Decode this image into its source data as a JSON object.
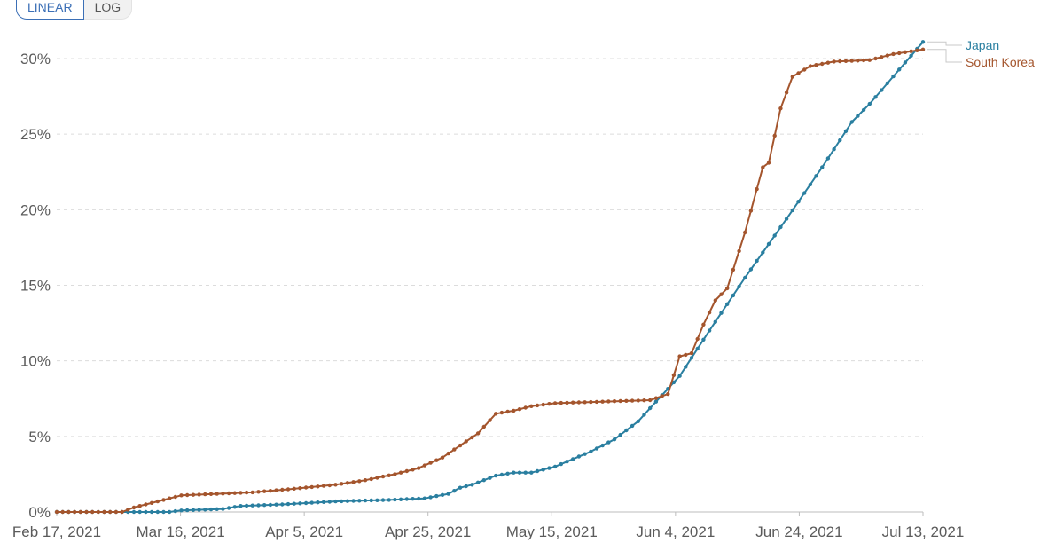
{
  "controls": {
    "linear_label": "LINEAR",
    "log_label": "LOG"
  },
  "chart_data": {
    "type": "line",
    "title": "",
    "xlabel": "",
    "ylabel": "",
    "x_ticks": [
      "Feb 17, 2021",
      "Mar 16, 2021",
      "Apr 5, 2021",
      "Apr 25, 2021",
      "May 15, 2021",
      "Jun 4, 2021",
      "Jun 24, 2021",
      "Jul 13, 2021"
    ],
    "xlim": [
      "2021-02-17",
      "2021-07-13"
    ],
    "y_ticks": [
      "0%",
      "5%",
      "10%",
      "15%",
      "20%",
      "25%",
      "30%"
    ],
    "ylim": [
      0,
      30
    ],
    "y_unit": "%",
    "grid": "horizontal dashed",
    "legend": "right end of lines",
    "series": [
      {
        "name": "Japan",
        "color": "#2a7fa0",
        "points": [
          [
            "2021-02-17",
            0
          ],
          [
            "2021-03-08",
            0
          ],
          [
            "2021-03-10",
            0.1
          ],
          [
            "2021-03-17",
            0.2
          ],
          [
            "2021-03-20",
            0.4
          ],
          [
            "2021-03-27",
            0.5
          ],
          [
            "2021-04-05",
            0.7
          ],
          [
            "2021-04-14",
            0.8
          ],
          [
            "2021-04-20",
            0.9
          ],
          [
            "2021-04-24",
            1.2
          ],
          [
            "2021-04-26",
            1.6
          ],
          [
            "2021-04-28",
            1.8
          ],
          [
            "2021-05-02",
            2.4
          ],
          [
            "2021-05-05",
            2.6
          ],
          [
            "2021-05-08",
            2.6
          ],
          [
            "2021-05-12",
            3.0
          ],
          [
            "2021-05-18",
            4.0
          ],
          [
            "2021-05-22",
            4.8
          ],
          [
            "2021-05-26",
            6.0
          ],
          [
            "2021-05-29",
            7.3
          ],
          [
            "2021-06-02",
            9.0
          ],
          [
            "2021-06-07",
            12.0
          ],
          [
            "2021-06-13",
            15.5
          ],
          [
            "2021-06-20",
            19.4
          ],
          [
            "2021-06-26",
            22.8
          ],
          [
            "2021-07-01",
            25.8
          ],
          [
            "2021-07-04",
            27.0
          ],
          [
            "2021-07-13",
            31.1
          ]
        ]
      },
      {
        "name": "South Korea",
        "color": "#a4552d",
        "points": [
          [
            "2021-02-17",
            0
          ],
          [
            "2021-02-28",
            0
          ],
          [
            "2021-03-02",
            0.3
          ],
          [
            "2021-03-06",
            0.7
          ],
          [
            "2021-03-10",
            1.1
          ],
          [
            "2021-03-16",
            1.2
          ],
          [
            "2021-03-22",
            1.3
          ],
          [
            "2021-03-28",
            1.5
          ],
          [
            "2021-04-05",
            1.8
          ],
          [
            "2021-04-10",
            2.1
          ],
          [
            "2021-04-15",
            2.5
          ],
          [
            "2021-04-19",
            2.9
          ],
          [
            "2021-04-23",
            3.6
          ],
          [
            "2021-04-26",
            4.4
          ],
          [
            "2021-04-29",
            5.2
          ],
          [
            "2021-05-02",
            6.5
          ],
          [
            "2021-05-05",
            6.7
          ],
          [
            "2021-05-08",
            7.0
          ],
          [
            "2021-05-12",
            7.2
          ],
          [
            "2021-05-20",
            7.3
          ],
          [
            "2021-05-28",
            7.4
          ],
          [
            "2021-05-31",
            7.8
          ],
          [
            "2021-06-02",
            10.3
          ],
          [
            "2021-06-04",
            10.5
          ],
          [
            "2021-06-06",
            12.4
          ],
          [
            "2021-06-08",
            14.0
          ],
          [
            "2021-06-10",
            14.8
          ],
          [
            "2021-06-13",
            18.5
          ],
          [
            "2021-06-16",
            22.8
          ],
          [
            "2021-06-17",
            23.1
          ],
          [
            "2021-06-19",
            26.7
          ],
          [
            "2021-06-21",
            28.8
          ],
          [
            "2021-06-24",
            29.5
          ],
          [
            "2021-06-28",
            29.8
          ],
          [
            "2021-07-04",
            29.9
          ],
          [
            "2021-07-08",
            30.3
          ],
          [
            "2021-07-13",
            30.6
          ]
        ]
      }
    ]
  }
}
